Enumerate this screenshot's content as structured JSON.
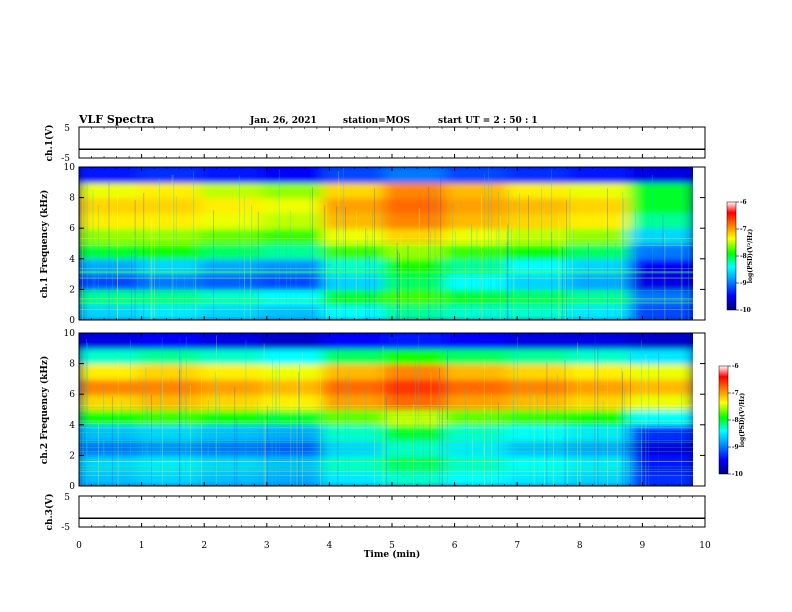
{
  "header": {
    "title": "VLF Spectra",
    "date": "Jan. 26, 2021",
    "station": "station=MOS",
    "start_ut": "start  UT =   2 : 50 : 1"
  },
  "colorbar_label": "log(PSD)(V²/Hz)",
  "colors": {
    "cmap": [
      "#000080",
      "#0000ff",
      "#00aaff",
      "#00ffff",
      "#00ff00",
      "#ffff00",
      "#ff8000",
      "#ff0000",
      "#ffffff"
    ]
  },
  "chart_data": [
    {
      "type": "line",
      "id": "ch1-voltage",
      "ylabel": "ch.1(V)",
      "xlim": [
        0,
        10
      ],
      "ylim": [
        -5,
        5
      ],
      "yticks": [
        "5",
        "-5"
      ],
      "x": [
        0,
        10
      ],
      "y": [
        -2.2,
        -2.2
      ]
    },
    {
      "type": "heatmap",
      "id": "ch1-spectrogram",
      "ylabel": "ch.1  Frequency (kHz)",
      "xlim": [
        0,
        10
      ],
      "ylim": [
        0,
        10
      ],
      "yticks": [
        "0",
        "2",
        "4",
        "6",
        "8",
        "10"
      ],
      "colorbar": {
        "min": -10,
        "max": -6,
        "ticks": [
          "-6",
          "-7",
          "-8",
          "-9",
          "-10"
        ]
      },
      "x_bins": [
        "0-1 min",
        "1-2",
        "2-3",
        "3-4",
        "4-5",
        "5-6",
        "6-7",
        "7-8",
        "8-9",
        "9-10"
      ],
      "freq_bins_khz": [
        "0-1",
        "1-2",
        "2-3",
        "3-4",
        "4-5",
        "5-6",
        "6-7",
        "7-8",
        "8-9",
        "9-10"
      ],
      "values": [
        [
          -8.6,
          -8.5,
          -8.6,
          -8.7,
          -8.4,
          -8.2,
          -8.3,
          -8.3,
          -8.5,
          -9.2
        ],
        [
          -8.2,
          -8.2,
          -8.3,
          -8.4,
          -8.0,
          -7.8,
          -8.0,
          -8.1,
          -8.2,
          -9.0
        ],
        [
          -9.2,
          -9.0,
          -9.1,
          -9.2,
          -8.6,
          -8.1,
          -8.4,
          -8.6,
          -8.8,
          -9.6
        ],
        [
          -8.8,
          -8.6,
          -8.8,
          -8.9,
          -8.3,
          -7.9,
          -8.2,
          -8.4,
          -8.6,
          -9.5
        ],
        [
          -8.0,
          -7.9,
          -8.1,
          -8.2,
          -7.8,
          -7.6,
          -7.8,
          -7.9,
          -8.1,
          -9.0
        ],
        [
          -7.6,
          -7.6,
          -7.7,
          -7.8,
          -7.4,
          -7.2,
          -7.4,
          -7.5,
          -7.6,
          -8.6
        ],
        [
          -7.3,
          -7.3,
          -7.4,
          -7.5,
          -7.1,
          -6.9,
          -7.1,
          -7.2,
          -7.3,
          -8.2
        ],
        [
          -7.2,
          -7.2,
          -7.3,
          -7.4,
          -7.0,
          -6.8,
          -7.0,
          -7.1,
          -7.2,
          -8.0
        ],
        [
          -7.4,
          -7.3,
          -7.5,
          -7.6,
          -7.2,
          -6.9,
          -7.1,
          -7.3,
          -7.4,
          -8.0
        ],
        [
          -9.4,
          -9.3,
          -9.4,
          -9.5,
          -9.2,
          -9.0,
          -9.2,
          -9.3,
          -9.4,
          -9.6
        ]
      ]
    },
    {
      "type": "heatmap",
      "id": "ch2-spectrogram",
      "ylabel": "ch.2  Frequency (kHz)",
      "xlim": [
        0,
        10
      ],
      "ylim": [
        0,
        10
      ],
      "yticks": [
        "0",
        "2",
        "4",
        "6",
        "8",
        "10"
      ],
      "colorbar": {
        "min": -10,
        "max": -6,
        "ticks": [
          "-6",
          "-7",
          "-8",
          "-9",
          "-10"
        ]
      },
      "x_bins": [
        "0-1 min",
        "1-2",
        "2-3",
        "3-4",
        "4-5",
        "5-6",
        "6-7",
        "7-8",
        "8-9",
        "9-10"
      ],
      "freq_bins_khz": [
        "0-1",
        "1-2",
        "2-3",
        "3-4",
        "4-5",
        "5-6",
        "6-7",
        "7-8",
        "8-9",
        "9-10"
      ],
      "values": [
        [
          -8.7,
          -8.6,
          -8.7,
          -8.8,
          -8.5,
          -8.3,
          -8.4,
          -8.5,
          -8.6,
          -9.3
        ],
        [
          -8.6,
          -8.5,
          -8.6,
          -8.7,
          -8.3,
          -8.1,
          -8.3,
          -8.4,
          -8.5,
          -9.4
        ],
        [
          -9.0,
          -8.9,
          -9.0,
          -9.1,
          -8.6,
          -8.3,
          -8.5,
          -8.7,
          -8.8,
          -9.6
        ],
        [
          -8.7,
          -8.6,
          -8.7,
          -8.8,
          -8.3,
          -8.0,
          -8.3,
          -8.4,
          -8.5,
          -9.3
        ],
        [
          -7.9,
          -7.8,
          -7.9,
          -8.0,
          -7.7,
          -7.5,
          -7.7,
          -7.8,
          -7.9,
          -8.4
        ],
        [
          -7.2,
          -7.1,
          -7.2,
          -7.3,
          -7.0,
          -6.8,
          -7.0,
          -7.1,
          -7.2,
          -7.4
        ],
        [
          -6.9,
          -6.9,
          -7.0,
          -7.1,
          -6.8,
          -6.6,
          -6.8,
          -6.9,
          -7.0,
          -7.1
        ],
        [
          -7.3,
          -7.2,
          -7.3,
          -7.4,
          -7.1,
          -6.9,
          -7.1,
          -7.2,
          -7.3,
          -7.4
        ],
        [
          -8.3,
          -8.2,
          -8.3,
          -8.4,
          -8.1,
          -7.9,
          -8.1,
          -8.2,
          -8.3,
          -8.5
        ],
        [
          -9.6,
          -9.5,
          -9.6,
          -9.7,
          -9.5,
          -9.4,
          -9.5,
          -9.6,
          -9.6,
          -9.7
        ]
      ]
    },
    {
      "type": "line",
      "id": "ch3-voltage",
      "ylabel": "ch.3(V)",
      "xlim": [
        0,
        10
      ],
      "ylim": [
        -5,
        5
      ],
      "yticks": [
        "5",
        "-5"
      ],
      "x": [
        0,
        10
      ],
      "y": [
        -2.2,
        -2.2
      ]
    }
  ],
  "x_axis": {
    "label": "Time  (min)",
    "ticks": [
      "0",
      "1",
      "2",
      "3",
      "4",
      "5",
      "6",
      "7",
      "8",
      "9",
      "10"
    ]
  }
}
